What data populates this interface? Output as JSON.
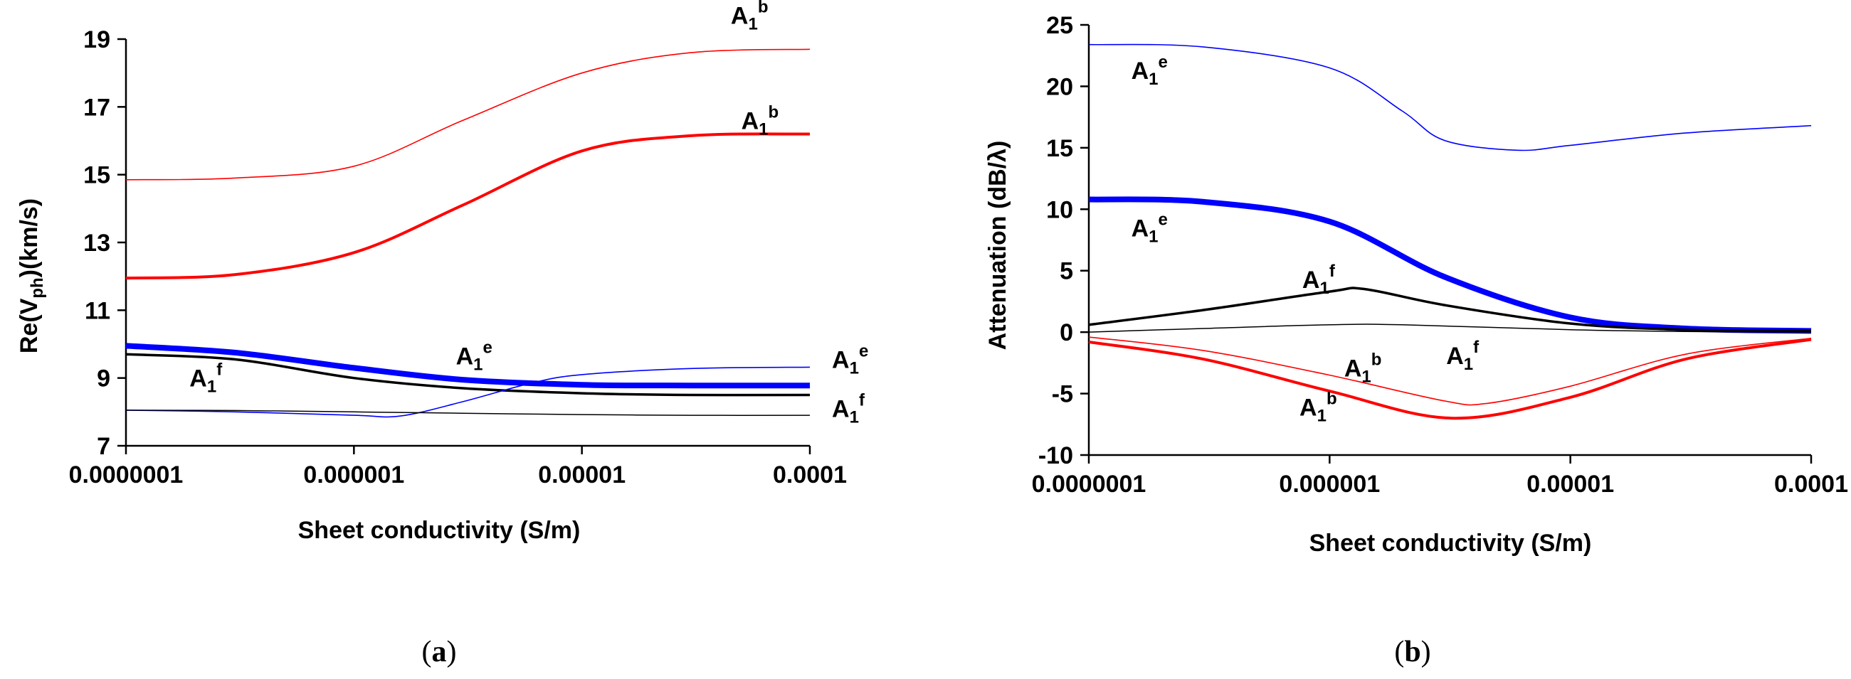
{
  "chart_data": [
    {
      "id": "a",
      "type": "line",
      "panel_label": "a",
      "xlabel": "Sheet conductivity (S/m)",
      "ylabel_parts": [
        "Re(V",
        "ph",
        ")(km/s)"
      ],
      "x_scale": "log",
      "xlim": [
        1e-07,
        0.0001
      ],
      "ylim": [
        7,
        19
      ],
      "x_ticks": [
        1e-07,
        1e-06,
        1e-05,
        0.0001
      ],
      "x_tick_labels": [
        "0.0000001",
        "0.000001",
        "0.00001",
        "0.0001"
      ],
      "y_ticks": [
        7,
        9,
        11,
        13,
        15,
        17,
        19
      ],
      "y_tick_labels": [
        "7",
        "9",
        "11",
        "13",
        "15",
        "17",
        "19"
      ],
      "series": [
        {
          "name": "A1b thin",
          "color": "#ff0000",
          "width": 1.6,
          "x": [
            1e-07,
            3e-07,
            1e-06,
            3e-06,
            1e-05,
            3e-05,
            0.0001
          ],
          "y": [
            14.85,
            14.9,
            15.25,
            16.6,
            18.0,
            18.6,
            18.7
          ]
        },
        {
          "name": "A1b thick",
          "color": "#ff0000",
          "width": 4,
          "x": [
            1e-07,
            3e-07,
            1e-06,
            3e-06,
            1e-05,
            3e-05,
            0.0001
          ],
          "y": [
            11.95,
            12.05,
            12.7,
            14.1,
            15.7,
            16.15,
            16.2
          ]
        },
        {
          "name": "A1e thick",
          "color": "#0000ff",
          "width": 8,
          "x": [
            1e-07,
            3e-07,
            1e-06,
            3e-06,
            1e-05,
            3e-05,
            0.0001
          ],
          "y": [
            9.95,
            9.75,
            9.3,
            8.95,
            8.8,
            8.78,
            8.78
          ]
        },
        {
          "name": "A1f thick",
          "color": "#000000",
          "width": 3.5,
          "x": [
            1e-07,
            3e-07,
            1e-06,
            3e-06,
            1e-05,
            3e-05,
            0.0001
          ],
          "y": [
            9.7,
            9.55,
            9.0,
            8.7,
            8.55,
            8.5,
            8.5
          ]
        },
        {
          "name": "A1e thin",
          "color": "#0000ff",
          "width": 1.6,
          "x": [
            1e-07,
            3e-07,
            1e-06,
            1.6e-06,
            3e-06,
            6e-06,
            1e-05,
            3e-05,
            0.0001
          ],
          "y": [
            8.05,
            8.0,
            7.9,
            7.88,
            8.3,
            8.85,
            9.1,
            9.28,
            9.32
          ]
        },
        {
          "name": "A1f thin",
          "color": "#000000",
          "width": 1.5,
          "x": [
            1e-07,
            3e-07,
            1e-06,
            3e-06,
            1e-05,
            3e-05,
            0.0001
          ],
          "y": [
            8.05,
            8.04,
            8.0,
            7.96,
            7.92,
            7.9,
            7.9
          ]
        }
      ],
      "labels": [
        {
          "base": "A",
          "sub": "1",
          "sup": "b",
          "x": 4.5e-05,
          "y": 19.45
        },
        {
          "base": "A",
          "sub": "1",
          "sup": "b",
          "x": 5e-05,
          "y": 16.35
        },
        {
          "base": "A",
          "sub": "1",
          "sup": "e",
          "x": 2.8e-06,
          "y": 9.4
        },
        {
          "base": "A",
          "sub": "1",
          "sup": "e",
          "x": 0.000125,
          "y": 9.3
        },
        {
          "base": "A",
          "sub": "1",
          "sup": "f",
          "x": 1.9e-07,
          "y": 8.75
        },
        {
          "base": "A",
          "sub": "1",
          "sup": "f",
          "x": 0.000125,
          "y": 7.85
        }
      ]
    },
    {
      "id": "b",
      "type": "line",
      "panel_label": "b",
      "xlabel": "Sheet conductivity (S/m)",
      "ylabel": "Attenuation (dB/λ)",
      "x_scale": "log",
      "xlim": [
        1e-07,
        0.0001
      ],
      "ylim": [
        -10,
        25
      ],
      "x_ticks": [
        1e-07,
        1e-06,
        1e-05,
        0.0001
      ],
      "x_tick_labels": [
        "0.0000001",
        "0.000001",
        "0.00001",
        "0.0001"
      ],
      "y_ticks": [
        -10,
        -5,
        0,
        5,
        10,
        15,
        20,
        25
      ],
      "y_tick_labels": [
        "-10",
        "-5",
        "0",
        "5",
        "10",
        "15",
        "20",
        "25"
      ],
      "series": [
        {
          "name": "A1e thin",
          "color": "#0000ff",
          "width": 1.6,
          "x": [
            1e-07,
            3e-07,
            1e-06,
            2e-06,
            3e-06,
            6e-06,
            1e-05,
            3e-05,
            0.0001
          ],
          "y": [
            23.4,
            23.2,
            21.5,
            18.0,
            15.6,
            14.8,
            15.2,
            16.2,
            16.8
          ]
        },
        {
          "name": "A1e thick",
          "color": "#0000ff",
          "width": 8,
          "x": [
            1e-07,
            3e-07,
            1e-06,
            3e-06,
            1e-05,
            3e-05,
            0.0001
          ],
          "y": [
            10.8,
            10.6,
            9.0,
            4.5,
            1.2,
            0.3,
            0.1
          ]
        },
        {
          "name": "A1f thick",
          "color": "#000000",
          "width": 3.5,
          "x": [
            1e-07,
            3e-07,
            1e-06,
            1.4e-06,
            3e-06,
            1e-05,
            3e-05,
            0.0001
          ],
          "y": [
            0.6,
            1.8,
            3.3,
            3.5,
            2.2,
            0.7,
            0.2,
            0.1
          ]
        },
        {
          "name": "A1f thin",
          "color": "#000000",
          "width": 1.5,
          "x": [
            1e-07,
            3e-07,
            1e-06,
            2e-06,
            1e-05,
            3e-05,
            0.0001
          ],
          "y": [
            0.0,
            0.3,
            0.6,
            0.6,
            0.2,
            0.05,
            0.0
          ]
        },
        {
          "name": "A1b thin",
          "color": "#ff0000",
          "width": 1.6,
          "x": [
            1e-07,
            3e-07,
            1e-06,
            3e-06,
            4.5e-06,
            1e-05,
            3e-05,
            0.0001
          ],
          "y": [
            -0.4,
            -1.5,
            -3.5,
            -5.6,
            -5.8,
            -4.4,
            -1.8,
            -0.5
          ]
        },
        {
          "name": "A1b thick",
          "color": "#ff0000",
          "width": 4,
          "x": [
            1e-07,
            3e-07,
            1e-06,
            3.2e-06,
            1e-05,
            3e-05,
            0.0001
          ],
          "y": [
            -0.8,
            -2.2,
            -4.8,
            -7.0,
            -5.3,
            -2.2,
            -0.6
          ]
        }
      ],
      "labels": [
        {
          "base": "A",
          "sub": "1",
          "sup": "e",
          "x": 1.5e-07,
          "y": 20.6
        },
        {
          "base": "A",
          "sub": "1",
          "sup": "e",
          "x": 1.5e-07,
          "y": 7.8
        },
        {
          "base": "A",
          "sub": "1",
          "sup": "f",
          "x": 7.7e-07,
          "y": 3.6
        },
        {
          "base": "A",
          "sub": "1",
          "sup": "b",
          "x": 1.15e-06,
          "y": -3.6
        },
        {
          "base": "A",
          "sub": "1",
          "sup": "f",
          "x": 3.05e-06,
          "y": -2.6
        },
        {
          "base": "A",
          "sub": "1",
          "sup": "b",
          "x": 7.5e-07,
          "y": -6.8
        }
      ]
    }
  ]
}
